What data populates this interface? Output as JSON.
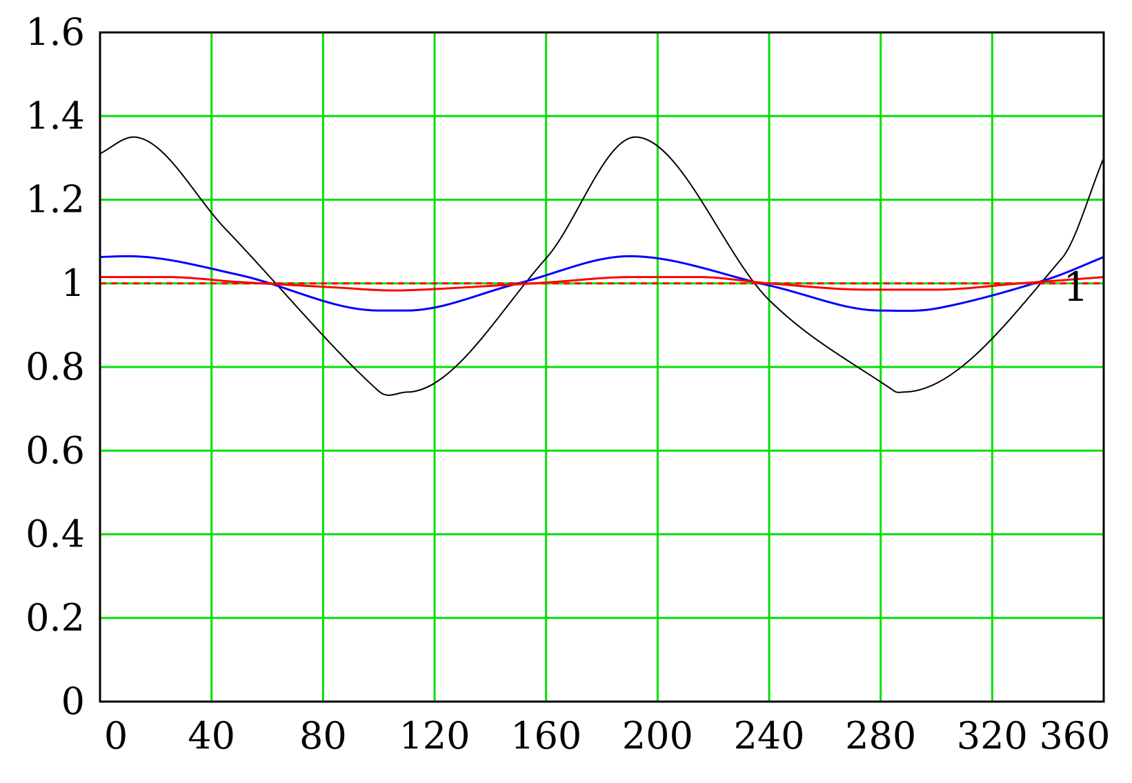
{
  "chart_data": {
    "type": "line",
    "xlim": [
      0,
      360
    ],
    "ylim": [
      0,
      1.6
    ],
    "x_ticks": [
      "0",
      "40",
      "80",
      "120",
      "160",
      "200",
      "240",
      "280",
      "320",
      "360"
    ],
    "y_ticks": [
      "0",
      "0.2",
      "0.4",
      "0.6",
      "0.8",
      "1",
      "1.2",
      "1.4",
      "1.6"
    ],
    "grid": true,
    "grid_color": "#00e000",
    "legend": "none",
    "end_label": "1",
    "series": [
      {
        "color": "#000000",
        "style": "solid",
        "x": [
          0,
          12,
          45,
          100,
          110,
          160,
          192,
          240,
          285,
          288,
          345,
          360
        ],
        "y": [
          1.31,
          1.35,
          1.13,
          0.742,
          0.74,
          1.06,
          1.35,
          0.96,
          0.742,
          0.74,
          1.06,
          1.3
        ]
      },
      {
        "color": "#0000ff",
        "style": "solid",
        "x": [
          0,
          10,
          50,
          100,
          110,
          150,
          190,
          240,
          280,
          300,
          340,
          360
        ],
        "y": [
          1.063,
          1.065,
          1.02,
          0.935,
          0.935,
          1.0,
          1.065,
          0.995,
          0.935,
          0.94,
          1.01,
          1.063
        ]
      },
      {
        "color": "#ff0000",
        "style": "solid",
        "x": [
          0,
          25,
          50,
          85,
          105,
          130,
          160,
          190,
          215,
          240,
          275,
          300,
          330,
          360
        ],
        "y": [
          1.015,
          1.015,
          1.003,
          0.99,
          0.983,
          0.99,
          1.002,
          1.015,
          1.015,
          1.0,
          0.985,
          0.985,
          1.0,
          1.015
        ]
      },
      {
        "color": "#ff0000",
        "style": "dashed",
        "x": [
          0,
          360
        ],
        "y": [
          1.0,
          1.0
        ]
      }
    ]
  }
}
